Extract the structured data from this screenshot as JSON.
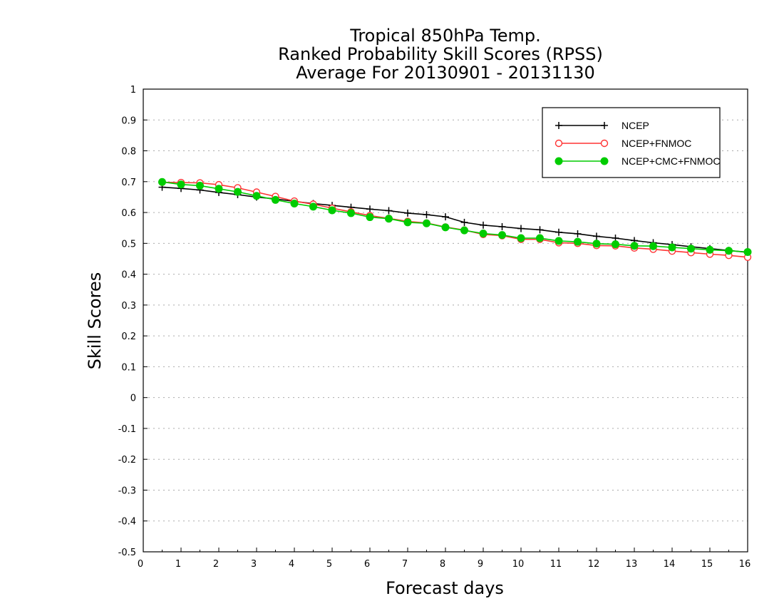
{
  "chart_data": {
    "type": "line",
    "title": [
      "Tropical 850hPa Temp.",
      "Ranked Probability Skill Scores (RPSS)",
      "Average For 20130901 - 20131130"
    ],
    "xlabel": "Forecast days",
    "ylabel": "Skill Scores",
    "xlim": [
      0,
      16
    ],
    "ylim": [
      -0.5,
      1
    ],
    "xticks": [
      "0",
      "1",
      "2",
      "3",
      "4",
      "5",
      "6",
      "7",
      "8",
      "9",
      "10",
      "11",
      "12",
      "13",
      "14",
      "15",
      "16"
    ],
    "yticks": [
      "-0.5",
      "-0.4",
      "-0.3",
      "-0.2",
      "-0.1",
      "0",
      "0.1",
      "0.2",
      "0.3",
      "0.4",
      "0.5",
      "0.6",
      "0.7",
      "0.8",
      "0.9",
      "1"
    ],
    "grid": true,
    "legend_position": "top-right",
    "x": [
      0.5,
      1,
      1.5,
      2,
      2.5,
      3,
      3.5,
      4,
      4.5,
      5,
      5.5,
      6,
      6.5,
      7,
      7.5,
      8,
      8.5,
      9,
      9.5,
      10,
      10.5,
      11,
      11.5,
      12,
      12.5,
      13,
      13.5,
      14,
      14.5,
      15,
      15.5,
      16
    ],
    "series": [
      {
        "name": "NCEP",
        "color": "#000000",
        "marker": "plus",
        "values": [
          0.682,
          0.678,
          0.673,
          0.665,
          0.658,
          0.65,
          0.644,
          0.636,
          0.629,
          0.623,
          0.617,
          0.611,
          0.606,
          0.598,
          0.593,
          0.586,
          0.568,
          0.559,
          0.554,
          0.548,
          0.544,
          0.536,
          0.531,
          0.523,
          0.517,
          0.509,
          0.502,
          0.496,
          0.489,
          0.483,
          0.477,
          0.471
        ]
      },
      {
        "name": "NCEP+FNMOC",
        "color": "#ff3333",
        "marker": "open-circle",
        "values": [
          0.698,
          0.697,
          0.696,
          0.69,
          0.68,
          0.666,
          0.652,
          0.637,
          0.627,
          0.614,
          0.602,
          0.59,
          0.581,
          0.571,
          0.566,
          0.553,
          0.543,
          0.529,
          0.525,
          0.513,
          0.513,
          0.502,
          0.5,
          0.493,
          0.492,
          0.485,
          0.481,
          0.475,
          0.47,
          0.465,
          0.461,
          0.455
        ]
      },
      {
        "name": "NCEP+CMC+FNMOC",
        "color": "#00cc00",
        "marker": "filled-circle",
        "values": [
          0.699,
          0.691,
          0.687,
          0.677,
          0.667,
          0.654,
          0.641,
          0.629,
          0.619,
          0.607,
          0.598,
          0.585,
          0.58,
          0.568,
          0.565,
          0.552,
          0.542,
          0.532,
          0.527,
          0.517,
          0.517,
          0.508,
          0.505,
          0.499,
          0.497,
          0.492,
          0.491,
          0.487,
          0.483,
          0.479,
          0.476,
          0.472
        ]
      }
    ]
  }
}
